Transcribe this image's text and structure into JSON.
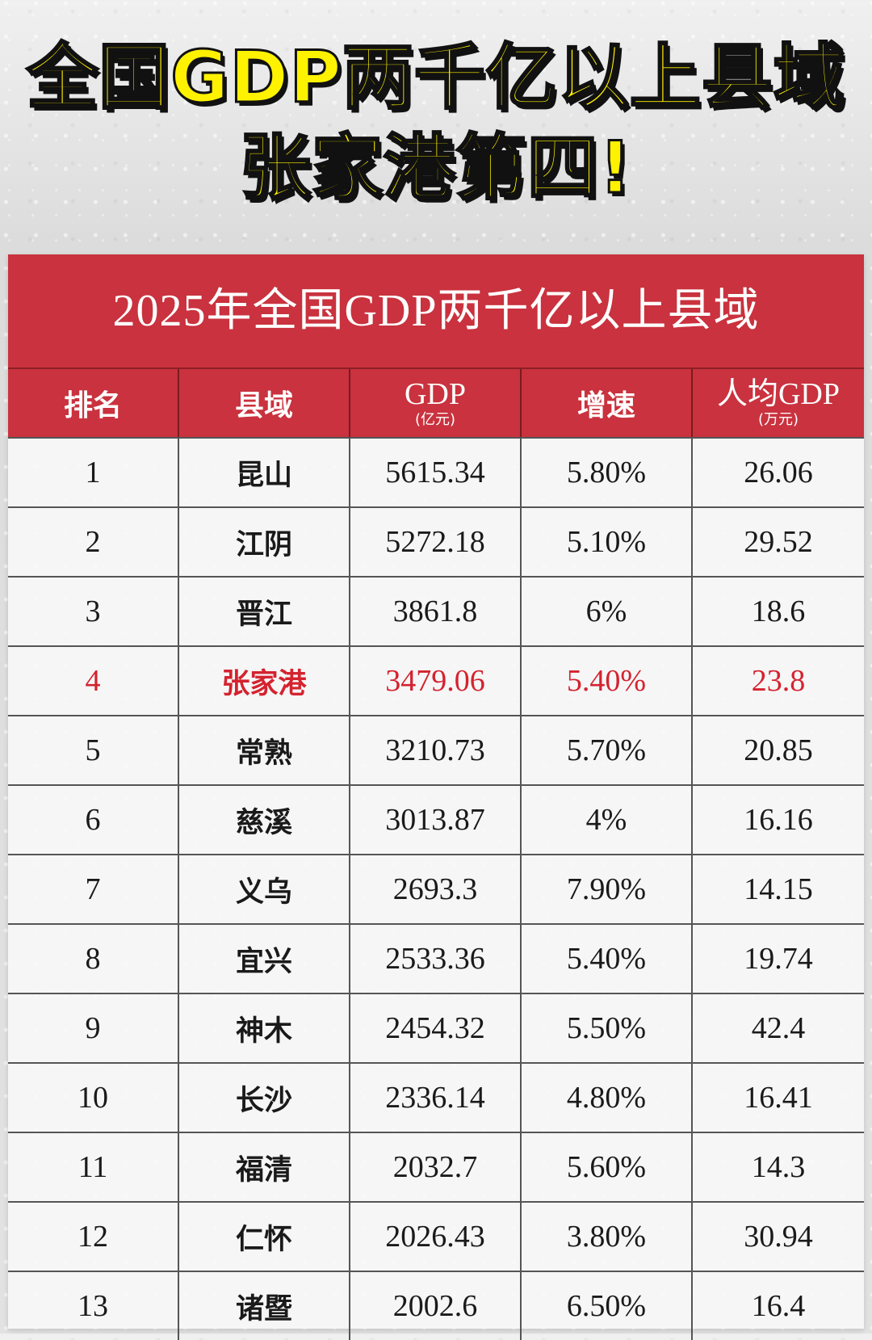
{
  "headline": {
    "line1": "全国GDP两千亿以上县域",
    "line2": "张家港第四!"
  },
  "table": {
    "title": "2025年全国GDP两千亿以上县域",
    "headers": {
      "rank": "排名",
      "county": "县域",
      "gdp": "GDP",
      "gdp_unit": "(亿元)",
      "growth": "增速",
      "per_capita": "人均GDP",
      "per_capita_unit": "(万元)"
    },
    "highlight_color": "#d4232f",
    "rows": [
      {
        "rank": "1",
        "county": "昆山",
        "gdp": "5615.34",
        "growth": "5.80%",
        "per_capita": "26.06"
      },
      {
        "rank": "2",
        "county": "江阴",
        "gdp": "5272.18",
        "growth": "5.10%",
        "per_capita": "29.52"
      },
      {
        "rank": "3",
        "county": "晋江",
        "gdp": "3861.8",
        "growth": "6%",
        "per_capita": "18.6"
      },
      {
        "rank": "4",
        "county": "张家港",
        "gdp": "3479.06",
        "growth": "5.40%",
        "per_capita": "23.8"
      },
      {
        "rank": "5",
        "county": "常熟",
        "gdp": "3210.73",
        "growth": "5.70%",
        "per_capita": "20.85"
      },
      {
        "rank": "6",
        "county": "慈溪",
        "gdp": "3013.87",
        "growth": "4%",
        "per_capita": "16.16"
      },
      {
        "rank": "7",
        "county": "义乌",
        "gdp": "2693.3",
        "growth": "7.90%",
        "per_capita": "14.15"
      },
      {
        "rank": "8",
        "county": "宜兴",
        "gdp": "2533.36",
        "growth": "5.40%",
        "per_capita": "19.74"
      },
      {
        "rank": "9",
        "county": "神木",
        "gdp": "2454.32",
        "growth": "5.50%",
        "per_capita": "42.4"
      },
      {
        "rank": "10",
        "county": "长沙",
        "gdp": "2336.14",
        "growth": "4.80%",
        "per_capita": "16.41"
      },
      {
        "rank": "11",
        "county": "福清",
        "gdp": "2032.7",
        "growth": "5.60%",
        "per_capita": "14.3"
      },
      {
        "rank": "12",
        "county": "仁怀",
        "gdp": "2026.43",
        "growth": "3.80%",
        "per_capita": "30.94"
      },
      {
        "rank": "13",
        "county": "诸暨",
        "gdp": "2002.6",
        "growth": "6.50%",
        "per_capita": "16.4"
      }
    ]
  }
}
